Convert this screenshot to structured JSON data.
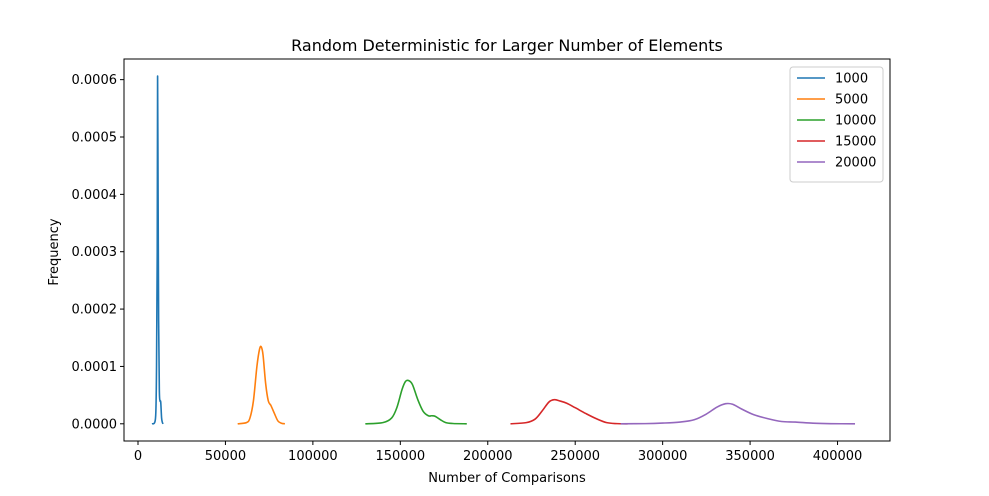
{
  "chart_data": {
    "type": "line",
    "title": "Random Deterministic for Larger Number of Elements",
    "xlabel": "Number of Comparisons",
    "ylabel": "Frequency",
    "xlim": [
      -8000,
      430000
    ],
    "ylim": [
      -3e-05,
      0.000636
    ],
    "xticks": [
      0,
      50000,
      100000,
      150000,
      200000,
      250000,
      300000,
      350000,
      400000
    ],
    "xtick_labels": [
      "0",
      "50000",
      "100000",
      "150000",
      "200000",
      "250000",
      "300000",
      "350000",
      "400000"
    ],
    "yticks": [
      0,
      0.0001,
      0.0002,
      0.0003,
      0.0004,
      0.0005,
      0.0006
    ],
    "ytick_labels": [
      "0.0000",
      "0.0001",
      "0.0002",
      "0.0003",
      "0.0004",
      "0.0005",
      "0.0006"
    ],
    "grid": false,
    "legend_position": "top-right",
    "series": [
      {
        "name": "1000",
        "color": "#1f77b4",
        "x": [
          8000,
          9500,
          10200,
          10600,
          11000,
          11200,
          11500,
          11800,
          12200,
          12600,
          13000,
          13500,
          14000,
          14400
        ],
        "y": [
          0,
          2e-06,
          2e-05,
          0.0001,
          0.0003,
          0.000605,
          0.0004,
          0.00018,
          6e-05,
          4e-05,
          3.8e-05,
          1e-05,
          2e-06,
          0
        ]
      },
      {
        "name": "5000",
        "color": "#ff7f0e",
        "x": [
          57000,
          62000,
          64000,
          66000,
          68000,
          69500,
          70500,
          71500,
          73000,
          74500,
          76000,
          78000,
          80000,
          82000,
          84000
        ],
        "y": [
          0,
          2e-06,
          1e-05,
          4e-05,
          0.0001,
          0.00013,
          0.000134,
          0.00012,
          7e-05,
          4e-05,
          3.2e-05,
          1.8e-05,
          5e-06,
          1e-06,
          0
        ]
      },
      {
        "name": "10000",
        "color": "#2ca02c",
        "x": [
          130000,
          140000,
          145000,
          148000,
          151000,
          153000,
          155000,
          157000,
          160000,
          163000,
          166000,
          168000,
          170000,
          173000,
          176000,
          180000,
          188000
        ],
        "y": [
          0,
          2e-06,
          1e-05,
          2.8e-05,
          6e-05,
          7.4e-05,
          7.5e-05,
          6.8e-05,
          4.2e-05,
          2.2e-05,
          1.4e-05,
          1.4e-05,
          1.3e-05,
          7e-06,
          2e-06,
          5e-07,
          0
        ]
      },
      {
        "name": "15000",
        "color": "#d62728",
        "x": [
          213000,
          222000,
          227000,
          231000,
          235000,
          238000,
          241000,
          245000,
          250000,
          256000,
          262000,
          268000,
          274000,
          280000
        ],
        "y": [
          0,
          2e-06,
          8e-06,
          2.2e-05,
          3.8e-05,
          4.2e-05,
          4e-05,
          3.6e-05,
          2.8e-05,
          1.8e-05,
          9e-06,
          2e-06,
          3e-07,
          0
        ]
      },
      {
        "name": "20000",
        "color": "#9467bd",
        "x": [
          276000,
          290000,
          300000,
          310000,
          318000,
          325000,
          331000,
          336000,
          340000,
          345000,
          352000,
          360000,
          368000,
          376000,
          386000,
          396000,
          410000
        ],
        "y": [
          0,
          3e-07,
          1.2e-06,
          3e-06,
          7e-06,
          1.7e-05,
          2.9e-05,
          3.5e-05,
          3.4e-05,
          2.6e-05,
          1.6e-05,
          9e-06,
          4e-06,
          3e-06,
          1e-06,
          2e-07,
          0
        ]
      }
    ]
  }
}
